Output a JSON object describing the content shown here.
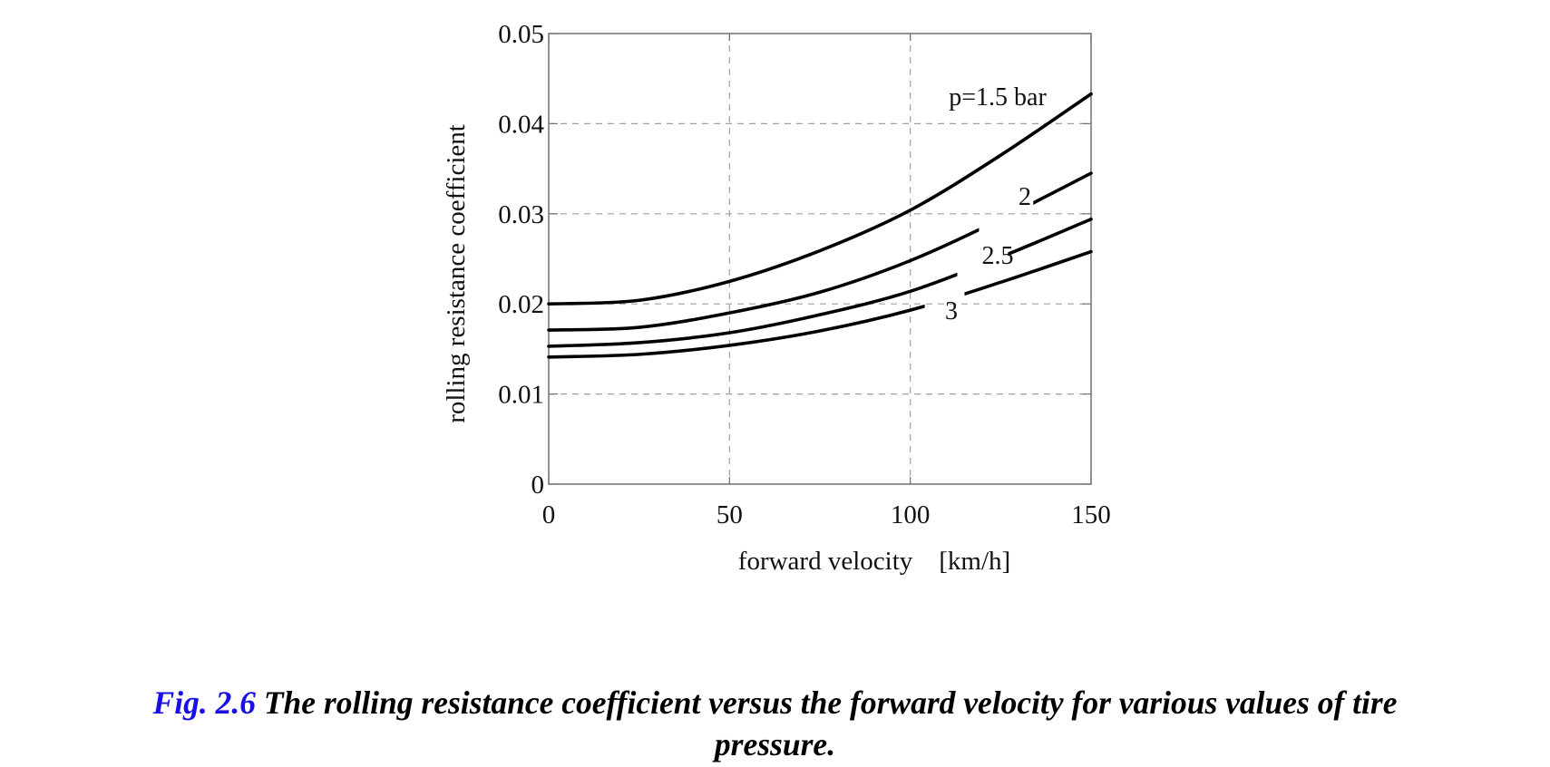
{
  "chart_data": {
    "type": "line",
    "title": "",
    "xlabel": "forward velocity    [km/h]",
    "ylabel": "rolling resistance coefficient",
    "xlim": [
      0,
      150
    ],
    "ylim": [
      0,
      0.05
    ],
    "grid": true,
    "x_ticks": [
      0,
      50,
      100,
      150
    ],
    "x_tick_labels": [
      "0",
      "50",
      "100",
      "150"
    ],
    "y_ticks": [
      0,
      0.01,
      0.02,
      0.03,
      0.04,
      0.05
    ],
    "y_tick_labels": [
      "0",
      "0.01",
      "0.02",
      "0.03",
      "0.04",
      "0.05"
    ],
    "x": [
      0,
      25,
      50,
      75,
      100,
      125,
      150
    ],
    "series": [
      {
        "name": "p=1.5 bar",
        "label": "p=1.5 bar",
        "values": [
          0.02,
          0.0204,
          0.0225,
          0.0259,
          0.0304,
          0.0365,
          0.0433
        ]
      },
      {
        "name": "2",
        "label": "2",
        "values": [
          0.0171,
          0.0174,
          0.019,
          0.0213,
          0.0248,
          0.0294,
          0.0345
        ]
      },
      {
        "name": "2.5",
        "label": "2.5",
        "values": [
          0.0153,
          0.0157,
          0.0168,
          0.0188,
          0.0214,
          0.0252,
          0.0294
        ]
      },
      {
        "name": "3",
        "label": "3",
        "values": [
          0.0141,
          0.0144,
          0.0154,
          0.017,
          0.0193,
          0.0224,
          0.0258
        ]
      }
    ]
  },
  "caption": {
    "figure_number": "Fig. 2.6",
    "line1": "The rolling resistance coefficient versus the forward velocity for various values of tire",
    "line2": "pressure."
  },
  "colors": {
    "caption_figure_number": "#1a10e6",
    "caption_text": "#000000",
    "curves": "#000000",
    "grid": "#a0a0a0",
    "frame": "#707070"
  }
}
